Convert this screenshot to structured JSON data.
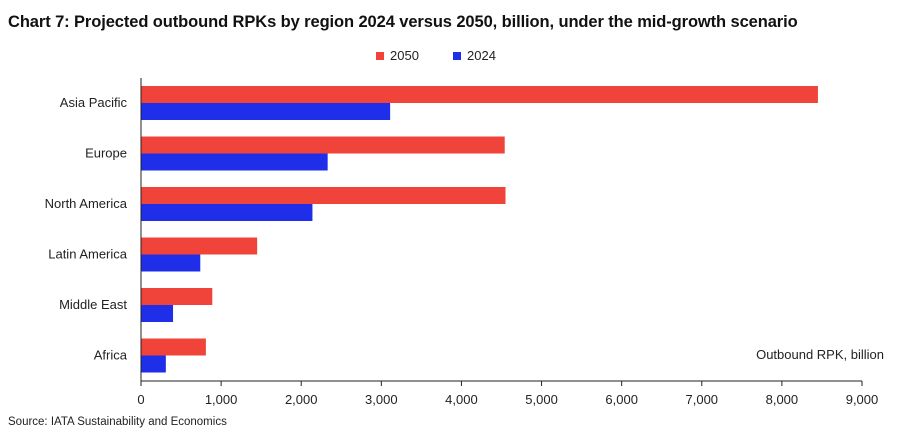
{
  "title": "Chart 7: Projected outbound RPKs by region 2024 versus 2050, billion, under the mid-growth scenario",
  "source": "Source: IATA Sustainability and Economics",
  "chart_data": {
    "type": "bar",
    "orientation": "horizontal",
    "categories": [
      "Asia Pacific",
      "Europe",
      "North America",
      "Latin America",
      "Middle East",
      "Africa"
    ],
    "series": [
      {
        "name": "2050",
        "color": "#f0443a",
        "values": [
          8450,
          4540,
          4550,
          1450,
          890,
          810
        ]
      },
      {
        "name": "2024",
        "color": "#1f2ee8",
        "values": [
          3110,
          2330,
          2140,
          740,
          400,
          310
        ]
      }
    ],
    "xlabel": "Outbound RPK, billion",
    "xlim": [
      0,
      9000
    ],
    "xticks": [
      0,
      1000,
      2000,
      3000,
      4000,
      5000,
      6000,
      7000,
      8000,
      9000
    ],
    "xtick_labels": [
      "0",
      "1,000",
      "2,000",
      "3,000",
      "4,000",
      "5,000",
      "6,000",
      "7,000",
      "8,000",
      "9,000"
    ],
    "legend": "top-center",
    "grid": false
  }
}
